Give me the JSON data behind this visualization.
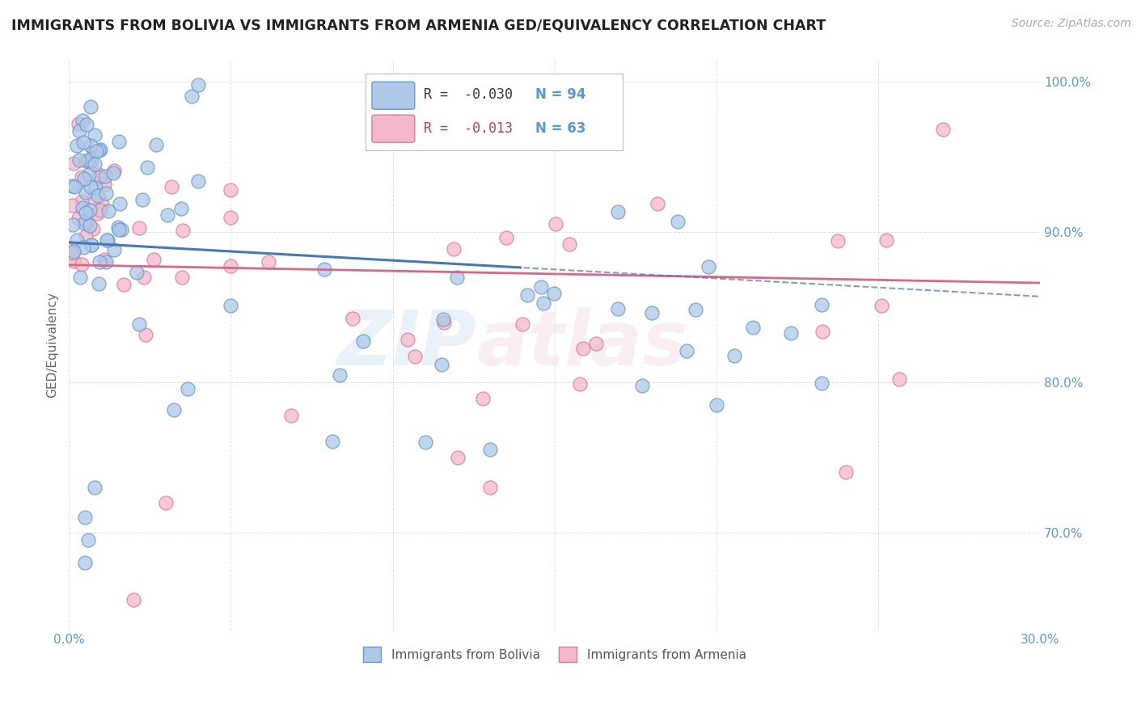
{
  "title": "IMMIGRANTS FROM BOLIVIA VS IMMIGRANTS FROM ARMENIA GED/EQUIVALENCY CORRELATION CHART",
  "source": "Source: ZipAtlas.com",
  "ylabel": "GED/Equivalency",
  "xlim": [
    0.0,
    0.3
  ],
  "ylim": [
    0.635,
    1.015
  ],
  "xtick_positions": [
    0.0,
    0.05,
    0.1,
    0.15,
    0.2,
    0.25,
    0.3
  ],
  "xticklabels": [
    "0.0%",
    "",
    "",
    "",
    "",
    "",
    "30.0%"
  ],
  "ytick_positions": [
    0.7,
    0.8,
    0.9,
    1.0
  ],
  "yticklabels_right": [
    "70.0%",
    "80.0%",
    "90.0%",
    "100.0%"
  ],
  "bolivia_color": "#adc8e8",
  "armenia_color": "#f5b8ca",
  "bolivia_edge": "#6699cc",
  "armenia_edge": "#dd7799",
  "trend_bolivia_color": "#4477bb",
  "trend_armenia_color": "#dd6688",
  "legend_R_bolivia": "-0.030",
  "legend_N_bolivia": "94",
  "legend_R_armenia": "-0.013",
  "legend_N_armenia": "63",
  "background_color": "#ffffff",
  "grid_color": "#cccccc",
  "title_color": "#222222",
  "source_color": "#aaaaaa",
  "axis_label_color": "#666666",
  "tick_color": "#5599dd"
}
